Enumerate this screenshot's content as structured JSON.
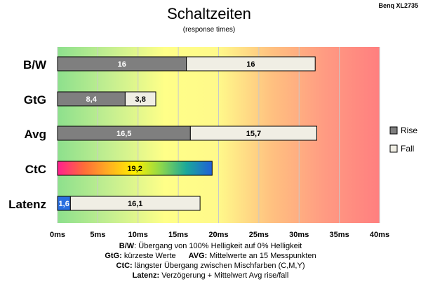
{
  "chart_data": {
    "type": "bar",
    "orientation": "horizontal",
    "stacked": true,
    "title": "Schaltzeiten",
    "subtitle": "(response times)",
    "corner_label": "Benq XL2735",
    "categories": [
      "B/W",
      "GtG",
      "Avg",
      "CtC",
      "Latenz"
    ],
    "series": [
      {
        "name": "Rise",
        "values": [
          16,
          8.4,
          16.5,
          null,
          1.6
        ],
        "labels": [
          "16",
          "8,4",
          "16,5",
          "",
          "1,6"
        ]
      },
      {
        "name": "Fall",
        "values": [
          16,
          3.8,
          15.7,
          null,
          16.1
        ],
        "labels": [
          "16",
          "3,8",
          "15,7",
          "",
          "16,1"
        ]
      }
    ],
    "single_values": [
      null,
      null,
      null,
      19.2,
      null
    ],
    "single_labels": [
      "",
      "",
      "",
      "19,2",
      ""
    ],
    "x_ticks": [
      "0ms",
      "5ms",
      "10ms",
      "15ms",
      "20ms",
      "25ms",
      "30ms",
      "35ms",
      "40ms"
    ],
    "xlim": [
      0,
      40
    ],
    "grid": true,
    "legend_position": "right",
    "colors": {
      "rise": "#7f7f7f",
      "fall": "#f0eee4",
      "bar_border": "#000000",
      "background_gradient": [
        "#8de08d",
        "#c6ef90",
        "#ffff88",
        "#fff98a",
        "#ffc080",
        "#ff9a82",
        "#ff7f7f"
      ],
      "ctc_gradient": [
        "#ff1f8f",
        "#ff6a3a",
        "#ffb020",
        "#fff000",
        "#8ed84a",
        "#1aa89a",
        "#2060d8"
      ],
      "latency_rise": "#2a6fe0"
    }
  },
  "notes": {
    "bw_key": "B/W",
    "bw_text": ":  Übergang von 100% Helligkeit auf 0% Helligkeit",
    "gtg_key": "GtG:",
    "gtg_text": " kürzeste  Werte",
    "avg_key": "AVG:",
    "avg_text": " Mittelwerte  an 15 Messpunkten",
    "ctc_key": "CtC:",
    "ctc_text": " längster Übergang  zwischen Mischfarben  (C,M,Y)",
    "lat_key": "Latenz:",
    "lat_text": " Verzögerung  + Mittelwert  Avg rise/fall"
  }
}
